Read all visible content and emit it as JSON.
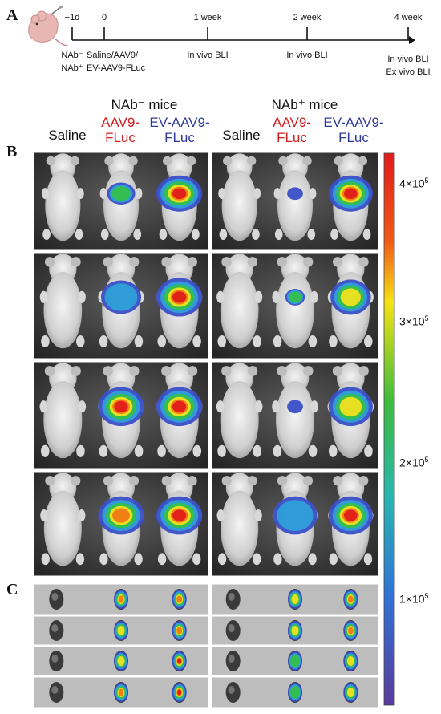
{
  "panels": {
    "a": "A",
    "b": "B",
    "c": "C"
  },
  "timeline": {
    "marks": [
      {
        "tick": "−1d",
        "labels": [
          "NAb⁻",
          "NAb⁺"
        ]
      },
      {
        "tick": "0",
        "labels": [
          "Saline/AAV9/",
          "EV-AAV9-FLuc"
        ]
      },
      {
        "tick": "1 week",
        "labels": [
          "In vivo BLI"
        ]
      },
      {
        "tick": "2 week",
        "labels": [
          "In vivo BLI"
        ]
      },
      {
        "tick": "4 week",
        "labels": [
          "In vivo BLI",
          "Ex vivo BLI"
        ]
      }
    ]
  },
  "groups": [
    {
      "title": "NAb⁻ mice",
      "columns": [
        {
          "line1": "Saline",
          "line2": "",
          "color": "#111111"
        },
        {
          "line1": "AAV9-",
          "line2": "FLuc",
          "color": "#d21e1e"
        },
        {
          "line1": "EV-AAV9-",
          "line2": "FLuc",
          "color": "#2f3a9a"
        }
      ]
    },
    {
      "title": "NAb⁺ mice",
      "columns": [
        {
          "line1": "Saline",
          "line2": "",
          "color": "#111111"
        },
        {
          "line1": "AAV9-",
          "line2": "FLuc",
          "color": "#d21e1e"
        },
        {
          "line1": "EV-AAV9-",
          "line2": "FLuc",
          "color": "#2f3a9a"
        }
      ]
    }
  ],
  "colorbar": {
    "ticks": [
      {
        "mantissa": "4×10",
        "exp": "5",
        "value": 400000
      },
      {
        "mantissa": "3×10",
        "exp": "5",
        "value": 300000
      },
      {
        "mantissa": "2×10",
        "exp": "5",
        "value": 200000
      },
      {
        "mantissa": "1×10",
        "exp": "5",
        "value": 100000
      }
    ],
    "range": [
      0,
      420000
    ]
  }
}
